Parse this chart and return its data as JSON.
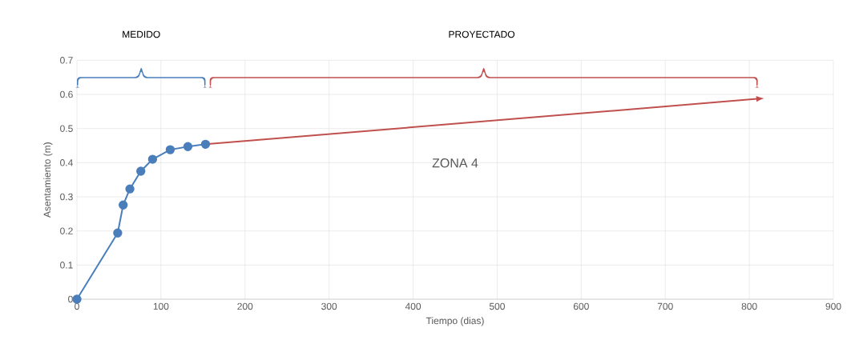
{
  "chart_data": {
    "type": "line",
    "xlabel": "Tiempo (dias)",
    "ylabel": "Asentamiento (m)",
    "xlim": [
      0,
      900
    ],
    "xticks": [
      0,
      100,
      200,
      300,
      400,
      500,
      600,
      700,
      800,
      900
    ],
    "ylim": [
      0,
      0.7
    ],
    "yticks": [
      0,
      0.1,
      0.2,
      0.3,
      0.4,
      0.5,
      0.6,
      0.7
    ],
    "grid": true,
    "line_style": "solid",
    "series": [
      {
        "color": "#4a7ebb",
        "marker": "circle",
        "x": [
          0,
          48.5,
          55,
          63,
          76,
          90,
          111,
          132,
          153
        ],
        "values": [
          0,
          0.194,
          0.276,
          0.323,
          0.375,
          0.41,
          0.438,
          0.447,
          0.454
        ]
      },
      {
        "color": "#c0504d",
        "marker": "none",
        "x": [
          153,
          810
        ],
        "values": [
          0.454,
          0.587
        ]
      }
    ],
    "annotations": [
      "MEDIDO",
      "PROYECTADO",
      "ZONA 4"
    ]
  }
}
